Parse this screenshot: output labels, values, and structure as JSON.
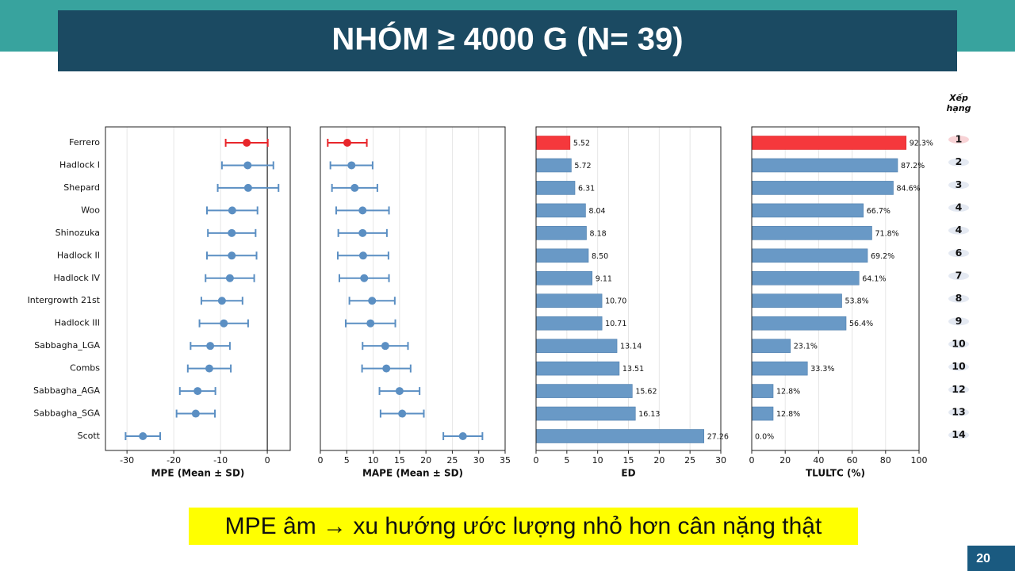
{
  "header": {
    "title": "NHÓM ≥ 4000 G (N= 39)"
  },
  "chart_data": [
    {
      "type": "errorbar",
      "xlabel": "MPE (Mean ± SD)",
      "categories": [
        "Ferrero",
        "Hadlock I",
        "Shepard",
        "Woo",
        "Shinozuka",
        "Hadlock II",
        "Hadlock IV",
        "Intergrowth 21st",
        "Hadlock III",
        "Sabbagha_LGA",
        "Combs",
        "Sabbagha_AGA",
        "Sabbagha_SGA",
        "Scott"
      ],
      "values": [
        -4.4,
        -4.2,
        -4.1,
        -7.5,
        -7.6,
        -7.6,
        -8.0,
        -9.7,
        -9.3,
        -12.2,
        -12.4,
        -14.9,
        -15.3,
        -26.6
      ],
      "errors": [
        4.5,
        5.5,
        6.5,
        5.4,
        5.1,
        5.3,
        5.2,
        4.4,
        5.2,
        4.2,
        4.6,
        3.8,
        4.1,
        3.7
      ],
      "color": "#5b8fc3",
      "highlight": {
        "index": 0,
        "color": "#e8262b"
      },
      "xlim": [
        -34.6,
        4.9
      ],
      "xticks": [
        -30,
        -20,
        -10,
        0
      ],
      "grid": true,
      "zero_line": true
    },
    {
      "type": "errorbar",
      "xlabel": "MAPE (Mean ± SD)",
      "values": [
        5.1,
        5.9,
        6.5,
        8.0,
        8.0,
        8.1,
        8.3,
        9.8,
        9.5,
        12.3,
        12.5,
        15.0,
        15.5,
        27.0
      ],
      "errors": [
        3.7,
        4.0,
        4.3,
        5.0,
        4.6,
        4.8,
        4.7,
        4.3,
        4.7,
        4.3,
        4.6,
        3.8,
        4.1,
        3.7
      ],
      "color": "#5b8fc3",
      "highlight": {
        "index": 0,
        "color": "#e8262b"
      },
      "xlim": [
        0,
        35
      ],
      "xticks": [
        0,
        5,
        10,
        15,
        20,
        25,
        30,
        35
      ],
      "grid": true
    },
    {
      "type": "barh",
      "xlabel": "ED",
      "values": [
        5.52,
        5.72,
        6.31,
        8.04,
        8.18,
        8.5,
        9.11,
        10.7,
        10.71,
        13.14,
        13.51,
        15.62,
        16.13,
        27.26
      ],
      "value_labels": [
        "5.52",
        "5.72",
        "6.31",
        "8.04",
        "8.18",
        "8.50",
        "9.11",
        "10.70",
        "10.71",
        "13.14",
        "13.51",
        "15.62",
        "16.13",
        "27.26"
      ],
      "color": "#6999c6",
      "highlight": {
        "index": 0,
        "color": "#f5383c"
      },
      "xlim": [
        0,
        30
      ],
      "xticks": [
        0,
        5,
        10,
        15,
        20,
        25,
        30
      ],
      "grid": true
    },
    {
      "type": "barh",
      "xlabel": "TLULTC (%)",
      "values": [
        92.3,
        87.2,
        84.6,
        66.7,
        71.8,
        69.2,
        64.1,
        53.8,
        56.4,
        23.1,
        33.3,
        12.8,
        12.8,
        0.0
      ],
      "value_labels": [
        "92.3%",
        "87.2%",
        "84.6%",
        "66.7%",
        "71.8%",
        "69.2%",
        "64.1%",
        "53.8%",
        "56.4%",
        "23.1%",
        "33.3%",
        "12.8%",
        "12.8%",
        "0.0%"
      ],
      "color": "#6999c6",
      "highlight": {
        "index": 0,
        "color": "#f5383c"
      },
      "xlim": [
        0,
        100
      ],
      "xticks": [
        0,
        20,
        40,
        60,
        80,
        100
      ],
      "grid": true
    }
  ],
  "ranking": {
    "title_lines": [
      "Xếp",
      "hạng"
    ],
    "values": [
      1,
      2,
      3,
      4,
      4,
      6,
      7,
      8,
      9,
      10,
      10,
      12,
      13,
      14
    ]
  },
  "footer": {
    "note": "MPE âm → xu hướng ước lượng nhỏ hơn cân nặng thật",
    "page": "20"
  }
}
